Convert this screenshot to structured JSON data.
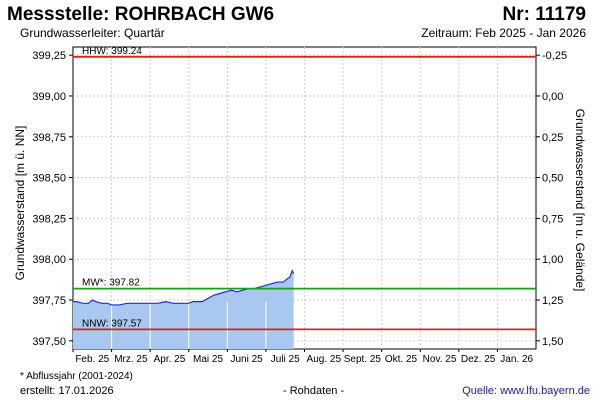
{
  "header": {
    "title": "Messstelle: ROHRBACH GW6",
    "number": "Nr: 11179",
    "aquifer": "Grundwasserleiter: Quartär",
    "period": "Zeitraum: Feb 2025 - Jan 2026"
  },
  "footer": {
    "note": "* Abflussjahr (2001-2024)",
    "created": "erstellt:  17.01.2026",
    "raw": "- Rohdaten -",
    "source": "Quelle: www.lfu.bayern.de"
  },
  "colors": {
    "fill": "#a8c8f0",
    "line": "#1f2fd6",
    "limit": "#e02020",
    "mean": "#1e9a1e",
    "grid": "#cfcfcf"
  },
  "chart_data": {
    "type": "area",
    "ylabel": "Grundwasserstand [m ü. NN]",
    "y2label": "Grundwasserstand [m u. Gelände]",
    "ylim": [
      397.45,
      399.3
    ],
    "y_ticks": [
      "399,25",
      "399,00",
      "398,75",
      "398,50",
      "398,25",
      "398,00",
      "397,75",
      "397,50"
    ],
    "y_tick_values": [
      399.25,
      399.0,
      398.75,
      398.5,
      398.25,
      398.0,
      397.75,
      397.5
    ],
    "y2_ticks": [
      "-0,25",
      "0,00",
      "0,25",
      "0,50",
      "0,75",
      "1,00",
      "1,25",
      "1,50"
    ],
    "x_ticks": [
      "Feb. 25",
      "Mrz. 25",
      "Apr. 25",
      "Mai 25",
      "Juni 25",
      "Juli 25",
      "Aug. 25",
      "Sept. 25",
      "Okt. 25",
      "Nov. 25",
      "Dez. 25",
      "Jan. 26"
    ],
    "grid": true,
    "reference_lines": [
      {
        "name": "HHW",
        "label": "HHW: 399.24",
        "value": 399.24,
        "color": "#e02020"
      },
      {
        "name": "MW*",
        "label": "MW*: 397.82",
        "value": 397.82,
        "color": "#1e9a1e"
      },
      {
        "name": "NNW",
        "label": "NNW: 397.57",
        "value": 397.57,
        "color": "#e02020"
      }
    ],
    "series": [
      {
        "x": [
          0,
          0.1,
          0.25,
          0.4,
          0.5,
          0.6,
          0.75,
          0.9,
          1.0,
          1.2,
          1.4,
          1.6,
          1.8,
          2.0,
          2.2,
          2.4,
          2.6,
          2.8,
          3.0,
          3.1,
          3.2,
          3.35,
          3.5,
          3.65,
          3.8,
          3.95,
          4.1,
          4.25,
          4.4,
          4.55,
          4.7,
          4.85,
          5.0,
          5.15,
          5.3,
          5.45,
          5.55,
          5.62,
          5.68,
          5.72
        ],
        "y": [
          397.74,
          397.74,
          397.73,
          397.73,
          397.75,
          397.74,
          397.73,
          397.73,
          397.72,
          397.72,
          397.73,
          397.73,
          397.73,
          397.73,
          397.73,
          397.74,
          397.73,
          397.73,
          397.73,
          397.74,
          397.74,
          397.74,
          397.76,
          397.78,
          397.79,
          397.8,
          397.81,
          397.8,
          397.81,
          397.82,
          397.82,
          397.83,
          397.84,
          397.85,
          397.86,
          397.86,
          397.88,
          397.89,
          397.93,
          397.91
        ]
      }
    ]
  }
}
